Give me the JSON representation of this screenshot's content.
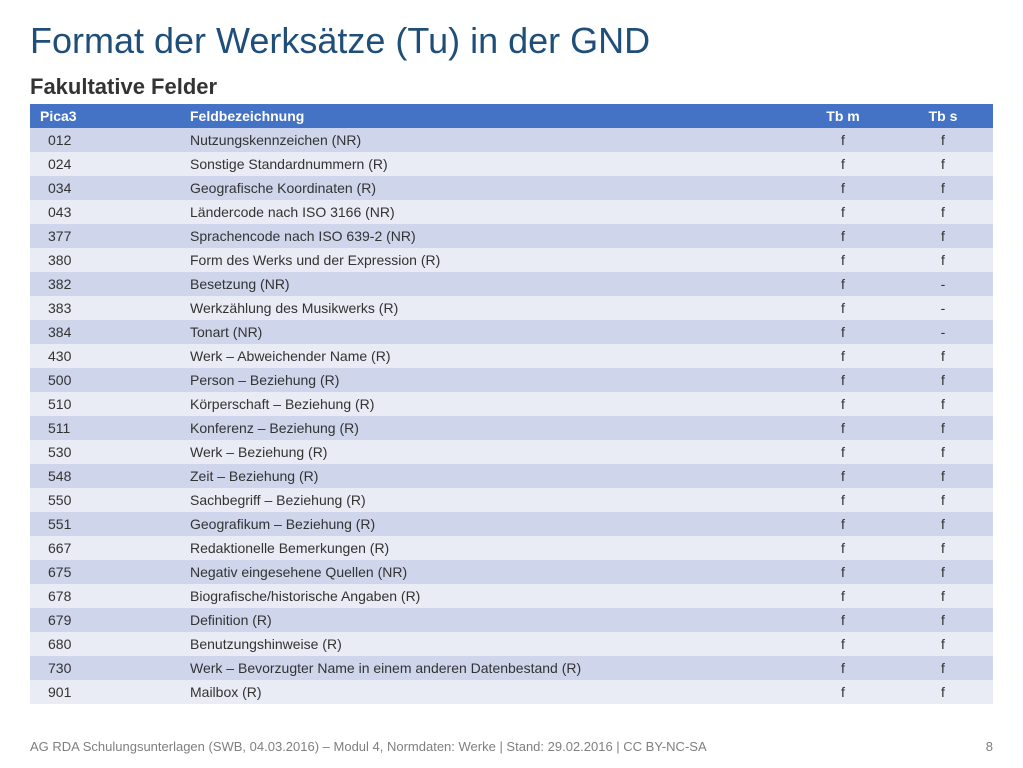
{
  "title": "Format der Werksätze (Tu) in der GND",
  "subtitle": "Fakultative Felder",
  "table": {
    "columns": [
      "Pica3",
      "Feldbezeichnung",
      "Tb m",
      "Tb s"
    ],
    "rows": [
      [
        "012",
        "Nutzungskennzeichen (NR)",
        "f",
        "f"
      ],
      [
        "024",
        "Sonstige Standardnummern (R)",
        "f",
        "f"
      ],
      [
        "034",
        "Geografische Koordinaten (R)",
        "f",
        "f"
      ],
      [
        "043",
        "Ländercode nach ISO 3166 (NR)",
        "f",
        "f"
      ],
      [
        "377",
        "Sprachencode nach ISO 639-2 (NR)",
        "f",
        "f"
      ],
      [
        "380",
        "Form des Werks und der Expression (R)",
        "f",
        "f"
      ],
      [
        "382",
        "Besetzung (NR)",
        "f",
        "-"
      ],
      [
        "383",
        "Werkzählung des Musikwerks (R)",
        "f",
        "-"
      ],
      [
        "384",
        "Tonart (NR)",
        "f",
        "-"
      ],
      [
        "430",
        "Werk – Abweichender Name (R)",
        "f",
        "f"
      ],
      [
        "500",
        "Person – Beziehung (R)",
        "f",
        "f"
      ],
      [
        "510",
        "Körperschaft – Beziehung (R)",
        "f",
        "f"
      ],
      [
        "511",
        "Konferenz – Beziehung (R)",
        "f",
        "f"
      ],
      [
        "530",
        "Werk – Beziehung (R)",
        "f",
        "f"
      ],
      [
        "548",
        "Zeit – Beziehung (R)",
        "f",
        "f"
      ],
      [
        "550",
        "Sachbegriff – Beziehung (R)",
        "f",
        "f"
      ],
      [
        "551",
        "Geografikum – Beziehung (R)",
        "f",
        "f"
      ],
      [
        "667",
        "Redaktionelle Bemerkungen (R)",
        "f",
        "f"
      ],
      [
        "675",
        "Negativ eingesehene Quellen (NR)",
        "f",
        "f"
      ],
      [
        "678",
        "Biografische/historische Angaben (R)",
        "f",
        "f"
      ],
      [
        "679",
        "Definition (R)",
        "f",
        "f"
      ],
      [
        "680",
        "Benutzungshinweise (R)",
        "f",
        "f"
      ],
      [
        "730",
        "Werk – Bevorzugter Name in einem anderen Datenbestand (R)",
        "f",
        "f"
      ],
      [
        "901",
        "Mailbox (R)",
        "f",
        "f"
      ]
    ],
    "header_bg": "#4472c4",
    "header_fg": "#ffffff",
    "row_even_bg": "#cfd5ea",
    "row_odd_bg": "#e9ebf5",
    "text_color": "#333333",
    "fontsize": 14
  },
  "footer": {
    "text": "AG RDA Schulungsunterlagen (SWB, 04.03.2016) – Modul 4, Normdaten: Werke | Stand: 29.02.2016 | CC BY-NC-SA",
    "page": "8",
    "color": "#7f7f7f"
  },
  "colors": {
    "title": "#1f4e79",
    "subtitle": "#333333",
    "background": "#ffffff"
  }
}
